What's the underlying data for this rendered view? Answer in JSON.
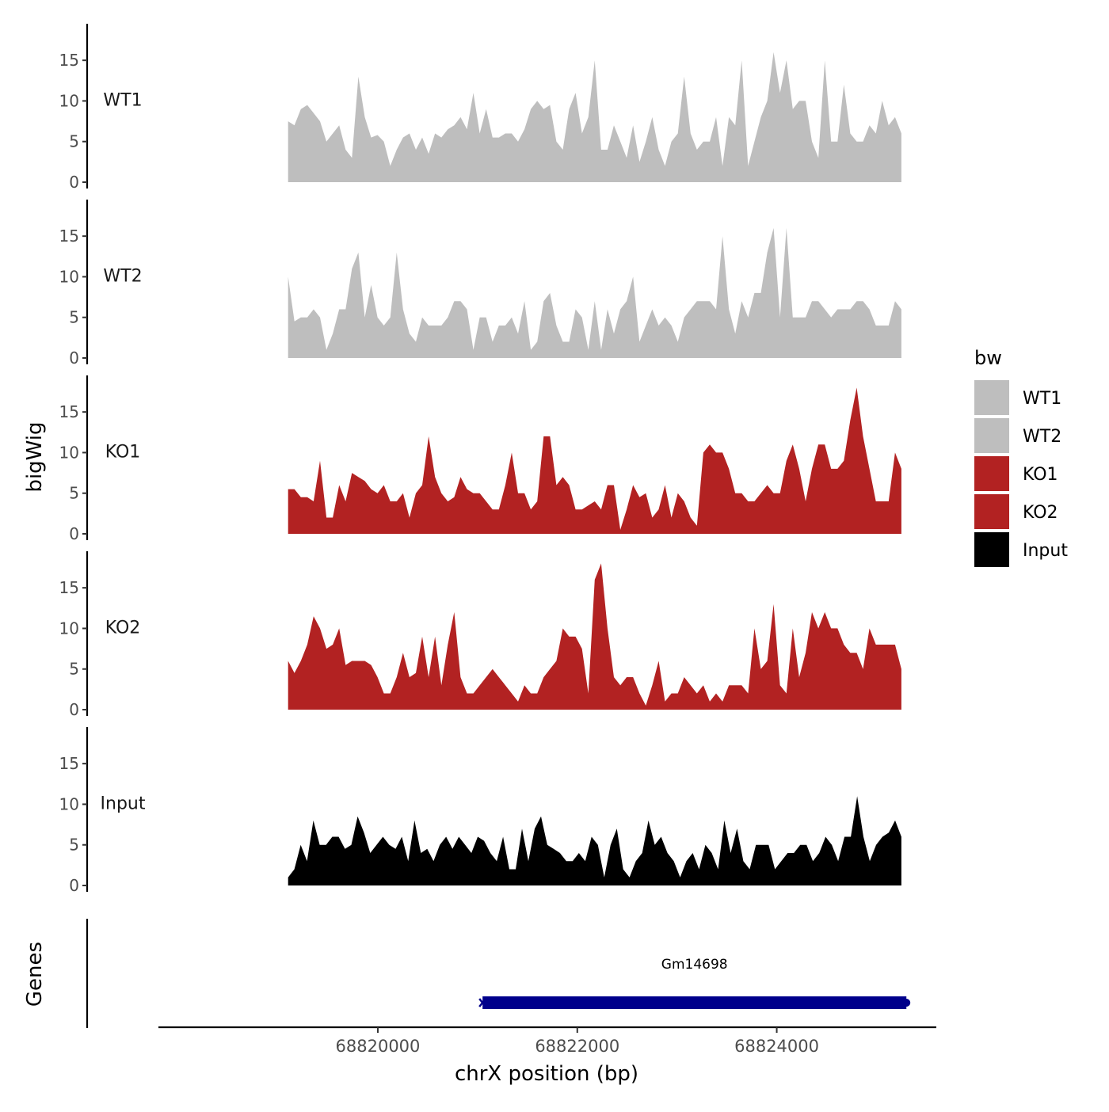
{
  "chart_data": {
    "type": "area",
    "ylabel": "bigWig",
    "genes_label": "Genes",
    "xlabel": "chrX position (bp)",
    "xlim": [
      68817800,
      68825600
    ],
    "data_x_range": [
      68819100,
      68825250
    ],
    "ylim": [
      0,
      19.5
    ],
    "y_ticks": [
      0,
      5,
      10,
      15
    ],
    "y_tick_labels": [
      "0",
      "5",
      "10",
      "15"
    ],
    "x_ticks": [
      68820000,
      68822000,
      68824000
    ],
    "x_tick_labels": [
      "68820000",
      "68822000",
      "68824000"
    ],
    "legend": {
      "title": "bw",
      "position": "right",
      "entries": [
        {
          "label": "WT1",
          "color": "#bebebe"
        },
        {
          "label": "WT2",
          "color": "#bebebe"
        },
        {
          "label": "KO1",
          "color": "#b22222"
        },
        {
          "label": "KO2",
          "color": "#b22222"
        },
        {
          "label": "Input",
          "color": "#000000"
        }
      ]
    },
    "series": [
      {
        "name": "WT1",
        "color": "#bebebe",
        "values": [
          7.5,
          7,
          9,
          9.5,
          8.5,
          7.5,
          5,
          6,
          7,
          4,
          3,
          13,
          8,
          5.5,
          5.8,
          5,
          2,
          4,
          5.5,
          6,
          4,
          5.5,
          3.5,
          6,
          5.5,
          6.5,
          7,
          8,
          6.5,
          11,
          6,
          9,
          5.5,
          5.5,
          6,
          6,
          5,
          6.5,
          9,
          10,
          9,
          9.5,
          5,
          4,
          9,
          11,
          6,
          8,
          15,
          4,
          4,
          7,
          5,
          3,
          7,
          2.5,
          5,
          8,
          4,
          2,
          5,
          6,
          13,
          6,
          4,
          5,
          5,
          8,
          2,
          8,
          7,
          15,
          2,
          5,
          8,
          10,
          16,
          11,
          15,
          9,
          10,
          10,
          5,
          3,
          15,
          5,
          5,
          12,
          6,
          5,
          5,
          7,
          6,
          10,
          7,
          8,
          6
        ]
      },
      {
        "name": "WT2",
        "color": "#bebebe",
        "values": [
          10,
          4.5,
          5,
          5,
          6,
          5,
          1,
          3,
          6,
          6,
          11,
          13,
          5,
          9,
          5,
          4,
          5,
          13,
          6,
          3,
          2,
          5,
          4,
          4,
          4,
          5,
          7,
          7,
          6,
          1,
          5,
          5,
          2,
          4,
          4,
          5,
          3,
          7,
          1,
          2,
          7,
          8,
          4,
          2,
          2,
          6,
          5,
          1,
          7,
          1,
          6,
          3,
          6,
          7,
          10,
          2,
          4,
          6,
          4,
          5,
          4,
          2,
          5,
          6,
          7,
          7,
          7,
          6,
          15,
          6,
          3,
          7,
          5,
          8,
          8,
          13,
          16,
          5,
          16,
          5,
          5,
          5,
          7,
          7,
          6,
          5,
          6,
          6,
          6,
          7,
          7,
          6,
          4,
          4,
          4,
          7,
          6
        ]
      },
      {
        "name": "KO1",
        "color": "#b22222",
        "values": [
          5.5,
          5.5,
          4.5,
          4.5,
          4,
          9,
          2,
          2,
          6,
          4,
          7.5,
          7,
          6.5,
          5.5,
          5,
          6,
          4,
          4,
          5,
          2,
          5,
          6,
          12,
          7,
          5,
          4,
          4.5,
          7,
          5.5,
          5,
          5,
          4,
          3,
          3,
          6,
          10,
          5,
          5,
          3,
          4,
          12,
          12,
          6,
          7,
          6,
          3,
          3,
          3.5,
          4,
          3,
          6,
          6,
          0.5,
          3,
          6,
          4.5,
          5,
          2,
          3,
          6,
          2,
          5,
          4,
          2,
          1,
          10,
          11,
          10,
          10,
          8,
          5,
          5,
          4,
          4,
          5,
          6,
          5,
          5,
          9,
          11,
          8,
          4,
          8,
          11,
          11,
          8,
          8,
          9,
          14,
          18,
          12,
          8,
          4,
          4,
          4,
          10,
          8
        ]
      },
      {
        "name": "KO2",
        "color": "#b22222",
        "values": [
          6,
          4.5,
          6,
          8,
          11.5,
          10,
          7.5,
          8,
          10,
          5.5,
          6,
          6,
          6,
          5.5,
          4,
          2,
          2,
          4,
          7,
          4,
          4.5,
          9,
          4,
          9,
          3,
          8,
          12,
          4,
          2,
          2,
          3,
          4,
          5,
          4,
          3,
          2,
          1,
          3,
          2,
          2,
          4,
          5,
          6,
          10,
          9,
          9,
          7.5,
          2,
          16,
          18,
          10,
          4,
          3,
          4,
          4,
          2,
          0.5,
          3,
          6,
          1,
          2,
          2,
          4,
          3,
          2,
          3,
          1,
          2,
          1,
          3,
          3,
          3,
          2,
          10,
          5,
          6,
          13,
          3,
          2,
          10,
          4,
          7,
          12,
          10,
          12,
          10,
          10,
          8,
          7,
          7,
          5,
          10,
          8,
          8,
          8,
          8,
          5
        ]
      },
      {
        "name": "Input",
        "color": "#000000",
        "values": [
          1,
          2,
          5,
          3,
          8,
          5,
          5,
          6,
          6,
          4.5,
          5,
          8.5,
          6.5,
          4,
          5,
          6,
          5,
          4.5,
          6,
          3,
          8,
          4,
          4.5,
          3,
          5,
          6,
          4.5,
          6,
          5,
          4,
          6,
          5.5,
          4,
          3,
          6,
          2,
          2,
          7,
          3,
          7,
          8.5,
          5,
          4.5,
          4,
          3,
          3,
          4,
          3,
          6,
          5,
          1,
          5,
          7,
          2,
          1,
          3,
          4,
          8,
          5,
          6,
          4,
          3,
          1,
          3,
          4,
          2,
          5,
          4,
          2,
          8,
          4,
          7,
          3,
          2,
          5,
          5,
          5,
          2,
          3,
          4,
          4,
          5,
          5,
          3,
          4,
          6,
          5,
          3,
          6,
          6,
          11,
          6,
          3,
          5,
          6,
          6.5,
          8,
          6
        ]
      }
    ],
    "genes": [
      {
        "name": "Gm14698",
        "start": 68821050,
        "end": 68825300,
        "color": "#00008b"
      }
    ]
  }
}
